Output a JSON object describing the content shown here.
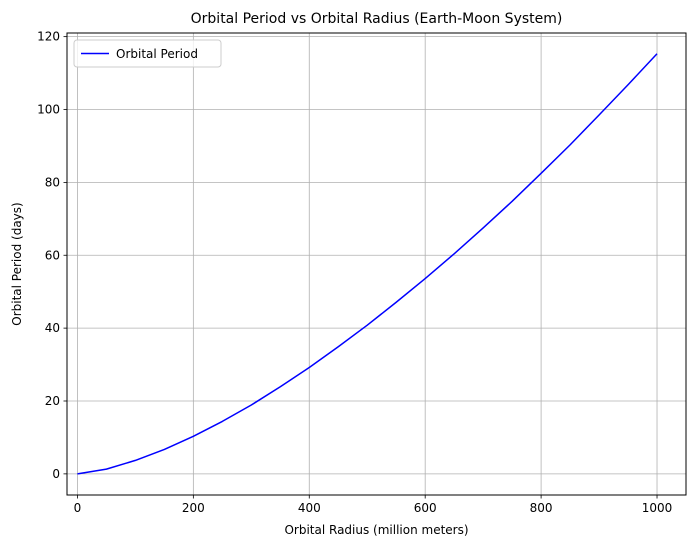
{
  "chart_data": {
    "type": "line",
    "title": "Orbital Period vs Orbital Radius (Earth-Moon System)",
    "xlabel": "Orbital Radius (million meters)",
    "ylabel": "Orbital Period (days)",
    "xlim": [
      -18,
      1050
    ],
    "ylim": [
      -5.8,
      121
    ],
    "xticks": [
      0,
      200,
      400,
      600,
      800,
      1000
    ],
    "yticks": [
      0,
      20,
      40,
      60,
      80,
      100,
      120
    ],
    "grid": true,
    "legend_position": "top-left",
    "series": [
      {
        "name": "Orbital Period",
        "color": "#0000ff",
        "x": [
          0,
          50,
          100,
          150,
          200,
          250,
          300,
          350,
          400,
          450,
          500,
          550,
          600,
          650,
          700,
          750,
          800,
          850,
          900,
          950,
          1000
        ],
        "y": [
          0,
          1.3,
          3.7,
          6.7,
          10.3,
          14.4,
          18.9,
          23.9,
          29.2,
          34.9,
          40.8,
          47.1,
          53.6,
          60.4,
          67.5,
          74.8,
          82.5,
          90.3,
          98.5,
          106.8,
          115.3
        ]
      }
    ]
  }
}
